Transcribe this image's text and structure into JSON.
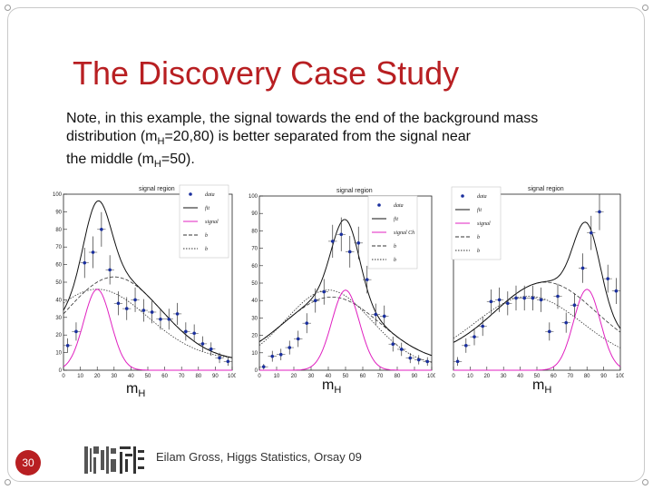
{
  "slide": {
    "title": "The Discovery Case Study",
    "note": {
      "line1": "Note, in this example, the signal towards the end of the background mass",
      "line2_pre": "distribution (m",
      "line2_sub": "H",
      "line2_post": "=20,80) is better separated from the signal near",
      "line3_pre": "the middle (m",
      "line3_sub": "H",
      "line3_post": "=50)."
    },
    "axis_label_main": "m",
    "axis_label_sub": "H",
    "slide_number": "30",
    "footer": "Eilam Gross, Higgs Statistics, Orsay 09"
  },
  "colors": {
    "title": "#b81f22",
    "data_points": "#1a2f9e",
    "signal": "#e020c0",
    "fit": "#111111"
  },
  "chart_data": [
    {
      "type": "scatter",
      "title": "signal region",
      "x": [
        2.5,
        7.5,
        12.5,
        17.5,
        22.5,
        27.5,
        32.5,
        37.5,
        42.5,
        47.5,
        52.5,
        57.5,
        62.5,
        67.5,
        72.5,
        77.5,
        82.5,
        87.5,
        92.5,
        97.5
      ],
      "y": [
        14,
        22,
        61,
        67,
        80,
        57,
        38,
        35,
        40,
        34,
        33,
        29,
        29,
        32,
        22,
        21,
        15,
        12,
        7,
        5
      ],
      "xlim": [
        0,
        100
      ],
      "ylim": [
        0,
        100
      ],
      "xticks": [
        "0",
        "10",
        "20",
        "30",
        "40",
        "50",
        "60",
        "70",
        "80",
        "90",
        "100"
      ],
      "yticks": [
        "0",
        "10",
        "20",
        "30",
        "40",
        "50",
        "60",
        "70",
        "80",
        "90",
        "100"
      ],
      "legend": [
        "data",
        "fit",
        "signal",
        "b",
        "b"
      ],
      "signal_center": 20
    },
    {
      "type": "scatter",
      "title": "signal region",
      "x": [
        2.5,
        7.5,
        12.5,
        17.5,
        22.5,
        27.5,
        32.5,
        37.5,
        42.5,
        47.5,
        52.5,
        57.5,
        62.5,
        67.5,
        72.5,
        77.5,
        82.5,
        87.5,
        92.5,
        97.5
      ],
      "y": [
        2,
        8,
        9,
        13,
        18,
        27,
        40,
        45,
        74,
        78,
        68,
        73,
        52,
        32,
        31,
        15,
        12,
        7,
        6,
        5
      ],
      "xlim": [
        0,
        100
      ],
      "ylim": [
        0,
        100
      ],
      "xticks": [
        "0",
        "10",
        "20",
        "30",
        "40",
        "50",
        "60",
        "70",
        "80",
        "90",
        "100"
      ],
      "yticks": [
        "0",
        "10",
        "20",
        "30",
        "40",
        "50",
        "60",
        "70",
        "80",
        "90",
        "100"
      ],
      "legend": [
        "data",
        "fit",
        "signal Ch",
        "b",
        "b"
      ],
      "signal_center": 50
    },
    {
      "type": "scatter",
      "title": "signal region",
      "x": [
        2.5,
        7.5,
        12.5,
        17.5,
        22.5,
        27.5,
        32.5,
        37.5,
        42.5,
        47.5,
        52.5,
        57.5,
        62.5,
        67.5,
        72.5,
        77.5,
        82.5,
        87.5,
        92.5,
        97.5
      ],
      "y": [
        5,
        14,
        19,
        25,
        39,
        40,
        38,
        41,
        41,
        41,
        40,
        22,
        42,
        27,
        37,
        58,
        78,
        90,
        52,
        45
      ],
      "xlim": [
        0,
        100
      ],
      "ylim": [
        0,
        100
      ],
      "xticks": [
        "0",
        "10",
        "20",
        "30",
        "40",
        "50",
        "60",
        "70",
        "80",
        "90",
        "100"
      ],
      "yticks": [],
      "legend": [
        "data",
        "fit",
        "signal",
        "b",
        "b"
      ],
      "signal_center": 80
    }
  ]
}
